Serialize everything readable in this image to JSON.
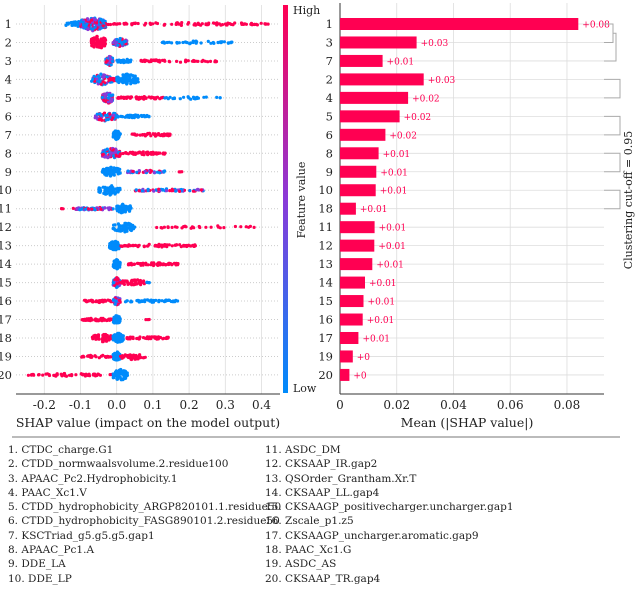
{
  "colors": {
    "high": "#ff0052",
    "low": "#008bfb",
    "mixed": "#8a3ad8",
    "grid": "#dddddd"
  },
  "chart_data": [
    {
      "type": "scatter",
      "subtype": "beeswarm",
      "xlabel": "SHAP value (impact on the model output)",
      "xlim": [
        -0.28,
        0.45
      ],
      "xticks": [
        "-0.2",
        "-0.1",
        "0.0",
        "0.1",
        "0.2",
        "0.3",
        "0.4"
      ],
      "xtick_values": [
        -0.2,
        -0.1,
        0,
        0.1,
        0.2,
        0.3,
        0.4
      ],
      "grid": true,
      "colorbar": {
        "label": "Feature value",
        "high": "High",
        "low": "Low"
      },
      "features": [
        {
          "label": "1",
          "clusters": [
            {
              "range": [
                -0.14,
                -0.09
              ],
              "value": "low",
              "n": 40
            },
            {
              "range": [
                -0.1,
                -0.03
              ],
              "value": "mixed",
              "n": 160
            },
            {
              "range": [
                -0.03,
                0.42
              ],
              "value": "high",
              "n": 90
            }
          ]
        },
        {
          "label": "2",
          "clusters": [
            {
              "range": [
                -0.07,
                -0.03
              ],
              "value": "high",
              "n": 90
            },
            {
              "range": [
                -0.01,
                0.03
              ],
              "value": "mixed",
              "n": 50
            },
            {
              "range": [
                0.12,
                0.32
              ],
              "value": "low",
              "n": 40
            }
          ]
        },
        {
          "label": "3",
          "clusters": [
            {
              "range": [
                -0.03,
                -0.01
              ],
              "value": "mixed",
              "n": 60
            },
            {
              "range": [
                0,
                0.04
              ],
              "value": "low",
              "n": 25
            },
            {
              "range": [
                0.06,
                0.28
              ],
              "value": "high",
              "n": 50
            }
          ]
        },
        {
          "label": "4",
          "clusters": [
            {
              "range": [
                -0.07,
                -0.01
              ],
              "value": "mixed",
              "n": 70
            },
            {
              "range": [
                -0.02,
                0
              ],
              "value": "high",
              "n": 20
            },
            {
              "range": [
                0,
                0.06
              ],
              "value": "low",
              "n": 70
            }
          ]
        },
        {
          "label": "5",
          "clusters": [
            {
              "range": [
                -0.04,
                -0.01
              ],
              "value": "mixed",
              "n": 70
            },
            {
              "range": [
                0,
                0.13
              ],
              "value": "high",
              "n": 50
            },
            {
              "range": [
                0.13,
                0.29
              ],
              "value": "low",
              "n": 25
            }
          ]
        },
        {
          "label": "6",
          "clusters": [
            {
              "range": [
                -0.06,
                0
              ],
              "value": "mixed",
              "n": 60
            },
            {
              "range": [
                0,
                0.09
              ],
              "value": "low",
              "n": 40
            }
          ]
        },
        {
          "label": "7",
          "clusters": [
            {
              "range": [
                -0.01,
                0.01
              ],
              "value": "low",
              "n": 60
            },
            {
              "range": [
                0.04,
                0.15
              ],
              "value": "high",
              "n": 50
            }
          ]
        },
        {
          "label": "8",
          "clusters": [
            {
              "range": [
                -0.04,
                0.01
              ],
              "value": "mixed",
              "n": 70
            },
            {
              "range": [
                0.01,
                0.14
              ],
              "value": "high",
              "n": 60
            }
          ]
        },
        {
          "label": "9",
          "clusters": [
            {
              "range": [
                -0.04,
                0.01
              ],
              "value": "low",
              "n": 60
            },
            {
              "range": [
                0.03,
                0.14
              ],
              "value": "mixed",
              "n": 40
            },
            {
              "range": [
                0.17,
                0.18
              ],
              "value": "high",
              "n": 3
            }
          ]
        },
        {
          "label": "10",
          "clusters": [
            {
              "range": [
                -0.05,
                0.01
              ],
              "value": "low",
              "n": 60
            },
            {
              "range": [
                0.05,
                0.24
              ],
              "value": "mixed",
              "n": 60
            }
          ]
        },
        {
          "label": "11",
          "clusters": [
            {
              "range": [
                -0.16,
                -0.14
              ],
              "value": "high",
              "n": 3
            },
            {
              "range": [
                -0.12,
                -0.01
              ],
              "value": "mixed",
              "n": 60
            },
            {
              "range": [
                0,
                0.04
              ],
              "value": "low",
              "n": 60
            }
          ]
        },
        {
          "label": "12",
          "clusters": [
            {
              "range": [
                -0.01,
                0.05
              ],
              "value": "low",
              "n": 60
            },
            {
              "range": [
                0.11,
                0.38
              ],
              "value": "high",
              "n": 30
            }
          ]
        },
        {
          "label": "13",
          "clusters": [
            {
              "range": [
                -0.02,
                0.01
              ],
              "value": "low",
              "n": 60
            },
            {
              "range": [
                0.01,
                0.22
              ],
              "value": "high",
              "n": 70
            }
          ]
        },
        {
          "label": "14",
          "clusters": [
            {
              "range": [
                -0.01,
                0.01
              ],
              "value": "low",
              "n": 60
            },
            {
              "range": [
                0.03,
                0.17
              ],
              "value": "high",
              "n": 60
            }
          ]
        },
        {
          "label": "15",
          "clusters": [
            {
              "range": [
                -0.01,
                0.01
              ],
              "value": "mixed",
              "n": 60
            },
            {
              "range": [
                0.01,
                0.08
              ],
              "value": "high",
              "n": 40
            },
            {
              "range": [
                0.08,
                0.09
              ],
              "value": "low",
              "n": 5
            }
          ]
        },
        {
          "label": "16",
          "clusters": [
            {
              "range": [
                -0.09,
                -0.01
              ],
              "value": "high",
              "n": 40
            },
            {
              "range": [
                -0.01,
                0.01
              ],
              "value": "mixed",
              "n": 50
            },
            {
              "range": [
                0.02,
                0.17
              ],
              "value": "low",
              "n": 50
            }
          ]
        },
        {
          "label": "17",
          "clusters": [
            {
              "range": [
                -0.1,
                -0.01
              ],
              "value": "high",
              "n": 60
            },
            {
              "range": [
                -0.01,
                0.01
              ],
              "value": "low",
              "n": 60
            },
            {
              "range": [
                0.08,
                0.09
              ],
              "value": "high",
              "n": 3
            }
          ]
        },
        {
          "label": "18",
          "clusters": [
            {
              "range": [
                -0.07,
                -0.01
              ],
              "value": "high",
              "n": 50
            },
            {
              "range": [
                -0.01,
                0.02
              ],
              "value": "low",
              "n": 60
            },
            {
              "range": [
                0.02,
                0.15
              ],
              "value": "high",
              "n": 50
            }
          ]
        },
        {
          "label": "19",
          "clusters": [
            {
              "range": [
                -0.1,
                -0.01
              ],
              "value": "high",
              "n": 30
            },
            {
              "range": [
                -0.01,
                0.01
              ],
              "value": "low",
              "n": 60
            },
            {
              "range": [
                0.01,
                0.08
              ],
              "value": "high",
              "n": 40
            }
          ]
        },
        {
          "label": "20",
          "clusters": [
            {
              "range": [
                -0.25,
                -0.01
              ],
              "value": "high",
              "n": 60
            },
            {
              "range": [
                -0.01,
                0.03
              ],
              "value": "low",
              "n": 70
            }
          ]
        }
      ]
    },
    {
      "type": "bar",
      "orientation": "horizontal",
      "xlabel": "Mean (|SHAP value|)",
      "xlim": [
        0,
        0.092
      ],
      "xticks": [
        "0",
        "0.02",
        "0.04",
        "0.06",
        "0.08"
      ],
      "xtick_values": [
        0,
        0.02,
        0.04,
        0.06,
        0.08
      ],
      "grid": true,
      "categories": [
        "1",
        "3",
        "7",
        "2",
        "4",
        "5",
        "6",
        "8",
        "9",
        "10",
        "18",
        "11",
        "12",
        "13",
        "14",
        "15",
        "16",
        "17",
        "19",
        "20"
      ],
      "values": [
        0.084,
        0.027,
        0.015,
        0.0295,
        0.024,
        0.021,
        0.016,
        0.0136,
        0.0128,
        0.0126,
        0.0056,
        0.0122,
        0.0121,
        0.0114,
        0.0088,
        0.0083,
        0.008,
        0.0065,
        0.0045,
        0.0033
      ],
      "data_labels": [
        "+0.08",
        "+0.03",
        "+0.01",
        "+0.03",
        "+0.02",
        "+0.02",
        "+0.02",
        "+0.01",
        "+0.01",
        "+0.01",
        "+0.01",
        "+0.01",
        "+0.01",
        "+0.01",
        "+0.01",
        "+0.01",
        "+0.01",
        "+0.01",
        "+0",
        "+0"
      ],
      "clusters": [
        [
          0,
          1,
          2
        ],
        [
          3,
          4
        ],
        [
          5,
          6
        ],
        [
          7,
          8
        ],
        [
          9,
          10
        ]
      ],
      "cluster_label": "Clustering cut-off = 0.95"
    }
  ],
  "legend": {
    "left": [
      "1. CTDC_charge.G1",
      "2. CTDD_normwaalsvolume.2.residue100",
      "3. APAAC_Pc2.Hydrophobicity.1",
      "4. PAAC_Xc1.V",
      "5. CTDD_hydrophobicity_ARGP820101.1.residue50",
      "6. CTDD_hydrophobicity_FASG890101.2.residue50",
      "7. KSCTriad_g5.g5.g5.gap1",
      "8. APAAC_Pc1.A",
      "9. DDE_LA",
      "10. DDE_LP"
    ],
    "right": [
      "11. ASDC_DM",
      "12. CKSAAP_IR.gap2",
      "13. QSOrder_Grantham.Xr.T",
      "14. CKSAAP_LL.gap4",
      "15. CKSAAGP_positivecharger.uncharger.gap1",
      "16. Zscale_p1.z5",
      "17. CKSAAGP_uncharger.aromatic.gap9",
      "18. PAAC_Xc1.G",
      "19. ASDC_AS",
      "20. CKSAAP_TR.gap4"
    ]
  }
}
